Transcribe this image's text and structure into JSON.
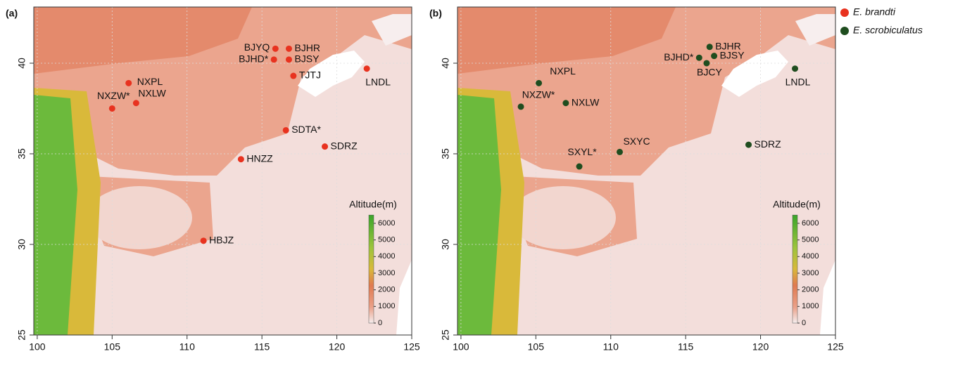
{
  "panels": [
    {
      "label": "(a)",
      "xlim": [
        99.77,
        125
      ],
      "ylim": [
        25,
        43.1
      ],
      "xticks": [
        100,
        105,
        110,
        115,
        120,
        125
      ],
      "yticks": [
        25,
        30,
        35,
        40
      ],
      "sites": [
        {
          "name": "BJYQ",
          "x": 115.9,
          "y": 40.8
        },
        {
          "name": "BJHR",
          "x": 116.8,
          "y": 40.8
        },
        {
          "name": "BJHD*",
          "x": 115.8,
          "y": 40.2
        },
        {
          "name": "BJSY",
          "x": 116.8,
          "y": 40.2
        },
        {
          "name": "TJTJ",
          "x": 117.1,
          "y": 39.3
        },
        {
          "name": "LNDL",
          "x": 122.0,
          "y": 39.7
        },
        {
          "name": "NXPL",
          "x": 106.1,
          "y": 38.9
        },
        {
          "name": "NXZW*",
          "x": 105.0,
          "y": 37.5
        },
        {
          "name": "NXLW",
          "x": 106.6,
          "y": 37.8
        },
        {
          "name": "SDTA*",
          "x": 116.6,
          "y": 36.3
        },
        {
          "name": "SDRZ",
          "x": 119.2,
          "y": 35.4
        },
        {
          "name": "HNZZ",
          "x": 113.6,
          "y": 34.7
        },
        {
          "name": "HBJZ",
          "x": 111.1,
          "y": 30.2
        }
      ],
      "colorbar": {
        "title": "Altitude(m)",
        "lim": [
          0,
          6500
        ],
        "ticks": [
          0,
          1000,
          2000,
          3000,
          4000,
          5000,
          6000
        ]
      }
    },
    {
      "label": "(b)",
      "xlim": [
        99.77,
        125
      ],
      "ylim": [
        25,
        43.1
      ],
      "xticks": [
        100,
        105,
        110,
        115,
        120,
        125
      ],
      "yticks": [
        25,
        30,
        35,
        40
      ],
      "sites": [
        {
          "name": "BJHR",
          "x": 116.6,
          "y": 40.9
        },
        {
          "name": "BJHD*",
          "x": 115.9,
          "y": 40.3
        },
        {
          "name": "BJSY",
          "x": 116.9,
          "y": 40.4
        },
        {
          "name": "BJCY",
          "x": 116.4,
          "y": 40.0
        },
        {
          "name": "LNDL",
          "x": 122.3,
          "y": 39.7
        },
        {
          "name": "NXPL",
          "x": 105.2,
          "y": 38.9
        },
        {
          "name": "NXZW*",
          "x": 104.0,
          "y": 37.6
        },
        {
          "name": "NXLW",
          "x": 107.0,
          "y": 37.8
        },
        {
          "name": "SXYC",
          "x": 110.6,
          "y": 35.1
        },
        {
          "name": "SXYL*",
          "x": 107.9,
          "y": 34.3
        },
        {
          "name": "SDRZ",
          "x": 119.2,
          "y": 35.5
        }
      ],
      "colorbar": {
        "title": "Altitude(m)",
        "lim": [
          0,
          6500
        ],
        "ticks": [
          0,
          1000,
          2000,
          3000,
          4000,
          5000,
          6000
        ]
      }
    }
  ],
  "legend": [
    {
      "name": "E. brandti",
      "color": "#e8321f"
    },
    {
      "name": "E. scrobiculatus",
      "color": "#1f4d1f"
    }
  ]
}
